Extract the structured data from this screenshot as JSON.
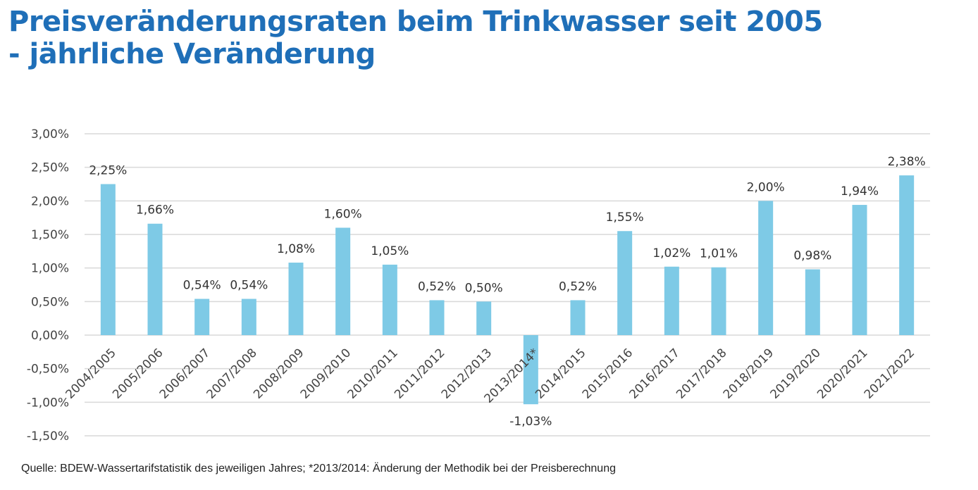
{
  "header": {
    "title_line1": "Preisveränderungsraten beim Trinkwasser seit 2005",
    "title_line2": "- jährliche Veränderung"
  },
  "footnote": "Quelle: BDEW-Wassertarifstatistik des jeweiligen Jahres; *2013/2014: Änderung der Methodik bei der Preisberechnung",
  "colors": {
    "bar": "#7ecae6",
    "title": "#1f6fb8",
    "grid": "#d9d9d9"
  },
  "chart_data": {
    "type": "bar",
    "title": "Preisveränderungsraten beim Trinkwasser seit 2005 - jährliche Veränderung",
    "xlabel": "",
    "ylabel": "",
    "ylim": [
      -1.5,
      3.0
    ],
    "ytick_step": 0.5,
    "yticks": [
      "-1,50%",
      "-1,00%",
      "-0,50%",
      "0,00%",
      "0,50%",
      "1,00%",
      "1,50%",
      "2,00%",
      "2,50%",
      "3,00%"
    ],
    "grid": true,
    "legend": "none",
    "categories": [
      "2004/2005",
      "2005/2006",
      "2006/2007",
      "2007/2008",
      "2008/2009",
      "2009/2010",
      "2010/2011",
      "2011/2012",
      "2012/2013",
      "2013/2014*",
      "2014/2015",
      "2015/2016",
      "2016/2017",
      "2017/2018",
      "2018/2019",
      "2019/2020",
      "2020/2021",
      "2021/2022"
    ],
    "values": [
      2.25,
      1.66,
      0.54,
      0.54,
      1.08,
      1.6,
      1.05,
      0.52,
      0.5,
      -1.03,
      0.52,
      1.55,
      1.02,
      1.01,
      2.0,
      0.98,
      1.94,
      2.38
    ],
    "data_labels": [
      "2,25%",
      "1,66%",
      "0,54%",
      "0,54%",
      "1,08%",
      "1,60%",
      "1,05%",
      "0,52%",
      "0,50%",
      "-1,03%",
      "0,52%",
      "1,55%",
      "1,02%",
      "1,01%",
      "2,00%",
      "0,98%",
      "1,94%",
      "2,38%"
    ],
    "unit": "%"
  }
}
